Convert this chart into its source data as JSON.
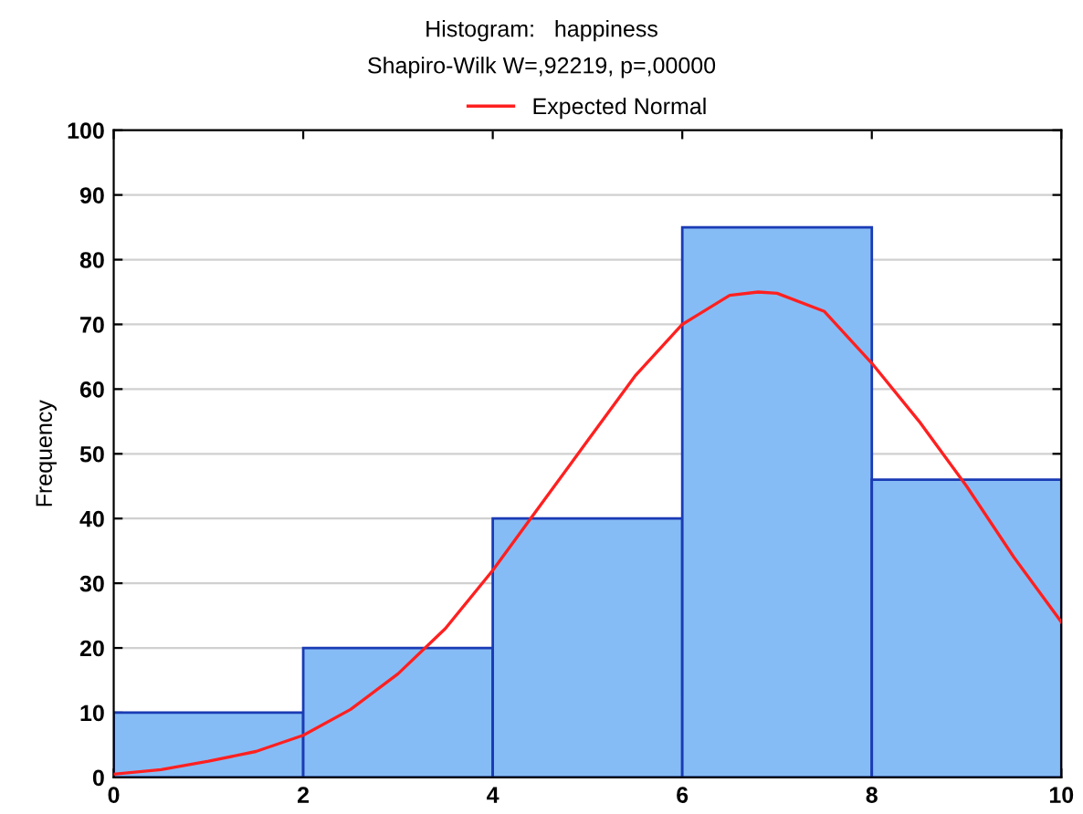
{
  "chart_data": {
    "type": "histogram",
    "title": "Histogram:   happiness",
    "subtitle": "Shapiro-Wilk W=,92219, p=,00000",
    "ylabel": "Frequency",
    "series": [
      {
        "color": "#86bcf5",
        "bins": [
          0,
          2,
          4,
          6,
          8,
          10
        ],
        "values": [
          10,
          20,
          40,
          85,
          46
        ]
      },
      {
        "type": "line",
        "name": "Expected Normal",
        "color": "#ff2020",
        "x": [
          0,
          0.5,
          1,
          1.5,
          2,
          2.5,
          3,
          3.5,
          4,
          4.5,
          5,
          5.5,
          6,
          6.5,
          6.8,
          7,
          7.5,
          8,
          8.5,
          9,
          9.5,
          10
        ],
        "values": [
          0.5,
          1.2,
          2.5,
          4,
          6.5,
          10.5,
          16,
          23,
          32,
          42,
          52,
          62,
          70,
          74.5,
          75,
          74.8,
          72,
          64,
          55,
          45,
          34,
          24
        ]
      }
    ],
    "xlim": [
      0,
      10
    ],
    "xticks": [
      0,
      2,
      4,
      6,
      8,
      10
    ],
    "ylim": [
      0,
      100
    ],
    "yticks": [
      0,
      10,
      20,
      30,
      40,
      50,
      60,
      70,
      80,
      90,
      100
    ],
    "grid": "y",
    "legend": "top",
    "marker": "none",
    "line_style": "solid"
  }
}
